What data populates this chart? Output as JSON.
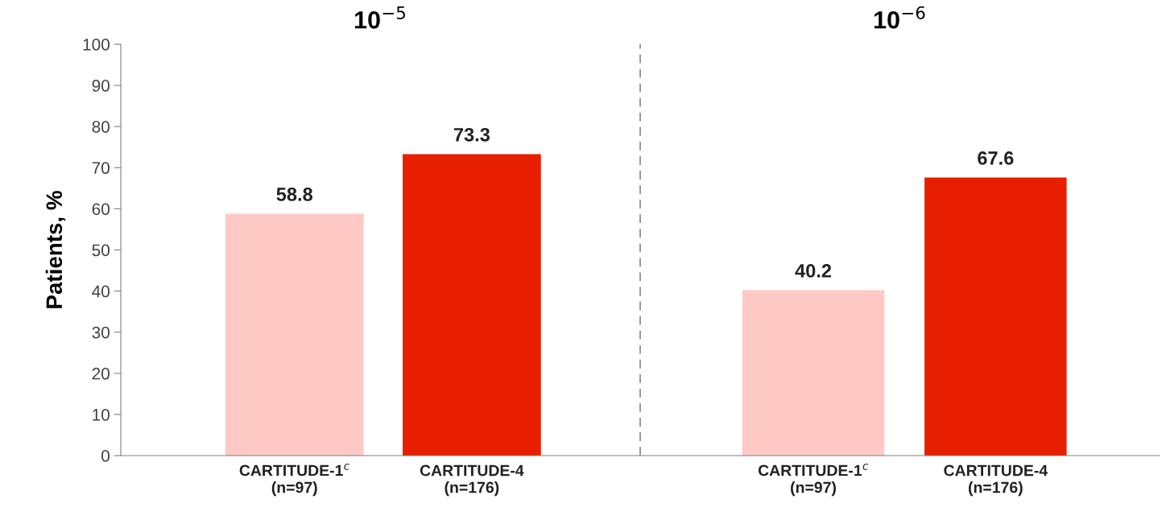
{
  "chart_data": [
    {
      "type": "bar",
      "title": "10$^{−5}$",
      "ylabel": "Patients, %",
      "categories": [
        "CARTITUDE-1$^{c}$\n(n=97)",
        "CARTITUDE-4\n(n=176)"
      ],
      "values": [
        58.8,
        73.3
      ],
      "colors": [
        "#ffc9c5",
        "#e81e00"
      ],
      "ylim": [
        0,
        100
      ],
      "yticks": [
        0,
        10,
        20,
        30,
        40,
        50,
        60,
        70,
        80,
        90,
        100
      ],
      "data_labels": true
    },
    {
      "type": "bar",
      "title": "10$^{−6}$",
      "categories": [
        "CARTITUDE-1$^{c}$\n(n=97)",
        "CARTITUDE-4\n(n=176)"
      ],
      "values": [
        40.2,
        67.6
      ],
      "colors": [
        "#ffc9c5",
        "#e81e00"
      ],
      "ylim": [
        0,
        100
      ],
      "yticks": [
        0,
        10,
        20,
        30,
        40,
        50,
        60,
        70,
        80,
        90,
        100
      ],
      "data_labels": true,
      "tick_labels": "x"
    }
  ]
}
